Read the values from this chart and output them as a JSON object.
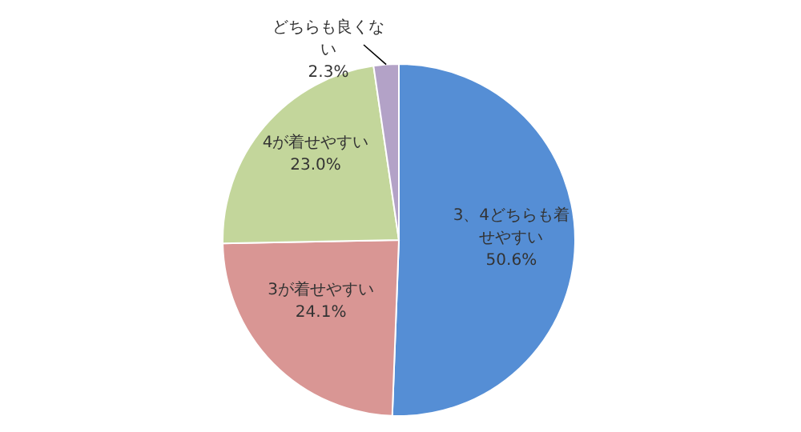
{
  "chart_data": {
    "type": "pie",
    "categories": [
      "3、4どちらも着せやすい",
      "3が着せやすい",
      "4が着せやすい",
      "どちらも良くない"
    ],
    "values": [
      50.6,
      24.1,
      23.0,
      2.3
    ],
    "value_labels": [
      "50.6%",
      "24.1%",
      "23.0%",
      "2.3%"
    ],
    "colors": [
      "#558ed5",
      "#d99694",
      "#c3d69b",
      "#b3a2c7"
    ]
  }
}
